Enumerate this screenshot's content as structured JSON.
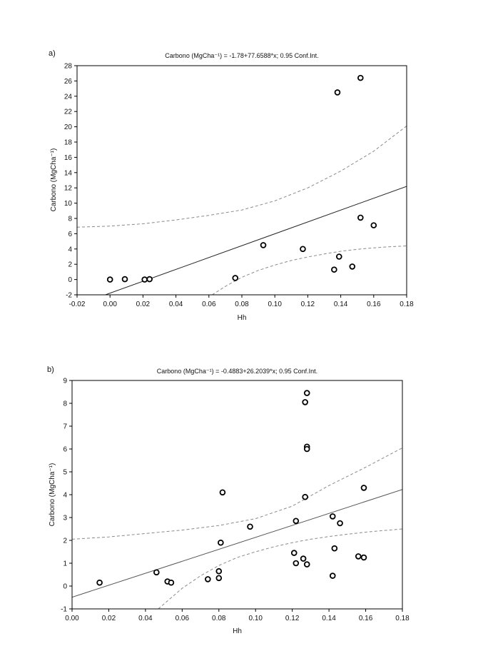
{
  "chart_data": [
    {
      "type": "scatter",
      "panel_label": "a)",
      "title": "Carbono (MgCha⁻¹)  = -1.78+77.6588*x; 0.95 Conf.Int.",
      "xlabel": "Hh",
      "ylabel": "Carbono (MgCha⁻¹)",
      "xlim": [
        -0.02,
        0.18
      ],
      "ylim": [
        -2,
        28
      ],
      "xticks": [
        -0.02,
        0.0,
        0.02,
        0.04,
        0.06,
        0.08,
        0.1,
        0.12,
        0.14,
        0.16,
        0.18
      ],
      "xtick_labels": [
        "-0.02",
        "0.00",
        "0.02",
        "0.04",
        "0.06",
        "0.08",
        "0.10",
        "0.12",
        "0.14",
        "0.16",
        "0.18"
      ],
      "yticks": [
        -2,
        0,
        2,
        4,
        6,
        8,
        10,
        12,
        14,
        16,
        18,
        20,
        22,
        24,
        26,
        28
      ],
      "ytick_labels": [
        "-2",
        "0",
        "2",
        "4",
        "6",
        "8",
        "10",
        "12",
        "14",
        "16",
        "18",
        "20",
        "22",
        "24",
        "26",
        "28"
      ],
      "regression": {
        "intercept": -1.78,
        "slope": 77.6588,
        "ci_level": 0.95
      },
      "ci_band": {
        "lower": [
          [
            0.062,
            -2.0
          ],
          [
            0.07,
            -0.9
          ],
          [
            0.08,
            0.3
          ],
          [
            0.09,
            1.2
          ],
          [
            0.1,
            1.9
          ],
          [
            0.11,
            2.5
          ],
          [
            0.12,
            2.95
          ],
          [
            0.13,
            3.35
          ],
          [
            0.14,
            3.7
          ],
          [
            0.15,
            3.95
          ],
          [
            0.16,
            4.15
          ],
          [
            0.17,
            4.3
          ],
          [
            0.18,
            4.4
          ]
        ],
        "upper": [
          [
            -0.02,
            6.85
          ],
          [
            0.0,
            7.0
          ],
          [
            0.02,
            7.3
          ],
          [
            0.04,
            7.8
          ],
          [
            0.06,
            8.4
          ],
          [
            0.08,
            9.1
          ],
          [
            0.1,
            10.3
          ],
          [
            0.12,
            12.0
          ],
          [
            0.14,
            14.2
          ],
          [
            0.16,
            16.8
          ],
          [
            0.18,
            20.1
          ]
        ]
      },
      "points": [
        {
          "x": 0.0,
          "y": 0.0
        },
        {
          "x": 0.009,
          "y": 0.05
        },
        {
          "x": 0.021,
          "y": 0.0
        },
        {
          "x": 0.024,
          "y": 0.05
        },
        {
          "x": 0.076,
          "y": 0.2
        },
        {
          "x": 0.093,
          "y": 4.5
        },
        {
          "x": 0.117,
          "y": 4.0
        },
        {
          "x": 0.136,
          "y": 1.3
        },
        {
          "x": 0.138,
          "y": 24.5
        },
        {
          "x": 0.139,
          "y": 3.0
        },
        {
          "x": 0.147,
          "y": 1.7
        },
        {
          "x": 0.152,
          "y": 26.4
        },
        {
          "x": 0.152,
          "y": 8.1
        },
        {
          "x": 0.16,
          "y": 7.1
        }
      ]
    },
    {
      "type": "scatter",
      "panel_label": "b)",
      "title": "Carbono (MgCha⁻¹)  = -0.4883+26.2039*x; 0.95 Conf.Int.",
      "xlabel": "Hh",
      "ylabel": "Carbono (MgCha⁻¹)",
      "xlim": [
        0.0,
        0.18
      ],
      "ylim": [
        -1,
        9
      ],
      "xticks": [
        0.0,
        0.02,
        0.04,
        0.06,
        0.08,
        0.1,
        0.12,
        0.14,
        0.16,
        0.18
      ],
      "xtick_labels": [
        "0.00",
        "0.02",
        "0.04",
        "0.06",
        "0.08",
        "0.10",
        "0.12",
        "0.14",
        "0.16",
        "0.18"
      ],
      "yticks": [
        -1,
        0,
        1,
        2,
        3,
        4,
        5,
        6,
        7,
        8,
        9
      ],
      "ytick_labels": [
        "-1",
        "0",
        "1",
        "2",
        "3",
        "4",
        "5",
        "6",
        "7",
        "8",
        "9"
      ],
      "regression": {
        "intercept": -0.4883,
        "slope": 26.2039,
        "ci_level": 0.95
      },
      "ci_band": {
        "lower": [
          [
            0.047,
            -1.0
          ],
          [
            0.06,
            -0.1
          ],
          [
            0.07,
            0.45
          ],
          [
            0.08,
            0.9
          ],
          [
            0.09,
            1.25
          ],
          [
            0.1,
            1.5
          ],
          [
            0.11,
            1.72
          ],
          [
            0.12,
            1.9
          ],
          [
            0.13,
            2.05
          ],
          [
            0.14,
            2.17
          ],
          [
            0.15,
            2.27
          ],
          [
            0.16,
            2.36
          ],
          [
            0.17,
            2.43
          ],
          [
            0.18,
            2.5
          ]
        ],
        "upper": [
          [
            0.0,
            2.05
          ],
          [
            0.02,
            2.15
          ],
          [
            0.04,
            2.3
          ],
          [
            0.06,
            2.45
          ],
          [
            0.08,
            2.65
          ],
          [
            0.1,
            2.95
          ],
          [
            0.12,
            3.5
          ],
          [
            0.14,
            4.4
          ],
          [
            0.16,
            5.2
          ],
          [
            0.18,
            6.05
          ]
        ]
      },
      "points": [
        {
          "x": 0.015,
          "y": 0.15
        },
        {
          "x": 0.046,
          "y": 0.6
        },
        {
          "x": 0.052,
          "y": 0.2
        },
        {
          "x": 0.054,
          "y": 0.15
        },
        {
          "x": 0.074,
          "y": 0.3
        },
        {
          "x": 0.08,
          "y": 0.65
        },
        {
          "x": 0.08,
          "y": 0.35
        },
        {
          "x": 0.081,
          "y": 1.9
        },
        {
          "x": 0.082,
          "y": 4.1
        },
        {
          "x": 0.097,
          "y": 2.6
        },
        {
          "x": 0.121,
          "y": 1.45
        },
        {
          "x": 0.122,
          "y": 2.85
        },
        {
          "x": 0.122,
          "y": 1.0
        },
        {
          "x": 0.126,
          "y": 1.2
        },
        {
          "x": 0.127,
          "y": 8.05
        },
        {
          "x": 0.127,
          "y": 3.9
        },
        {
          "x": 0.128,
          "y": 8.45
        },
        {
          "x": 0.128,
          "y": 6.1
        },
        {
          "x": 0.128,
          "y": 6.0
        },
        {
          "x": 0.128,
          "y": 0.95
        },
        {
          "x": 0.142,
          "y": 3.05
        },
        {
          "x": 0.142,
          "y": 0.45
        },
        {
          "x": 0.143,
          "y": 1.65
        },
        {
          "x": 0.146,
          "y": 2.75
        },
        {
          "x": 0.156,
          "y": 1.3
        },
        {
          "x": 0.159,
          "y": 4.3
        },
        {
          "x": 0.159,
          "y": 1.25
        }
      ]
    }
  ]
}
